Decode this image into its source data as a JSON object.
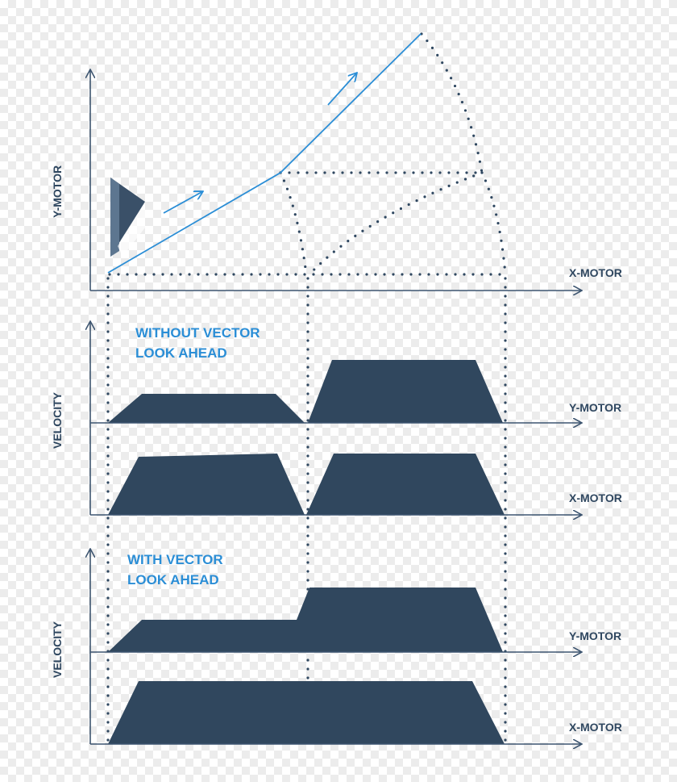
{
  "labels": {
    "top_y_axis": "Y-MOTOR",
    "top_x_axis": "X-MOTOR",
    "without_line1": "WITHOUT VECTOR",
    "without_line2": "LOOK AHEAD",
    "with_line1": "WITH VECTOR",
    "with_line2": "LOOK AHEAD",
    "velocity_1": "VELOCITY",
    "velocity_2": "VELOCITY",
    "y_motor_1": "Y-MOTOR",
    "x_motor_1": "X-MOTOR",
    "y_motor_2": "Y-MOTOR",
    "x_motor_2": "X-MOTOR"
  },
  "colors": {
    "navy": "#30475e",
    "blue": "#2b8ed6",
    "tool_dark": "#3a5068",
    "tool_light": "#5d7690"
  },
  "icons": {
    "tool": "tool-head-icon",
    "arrow": "direction-arrow-icon"
  }
}
